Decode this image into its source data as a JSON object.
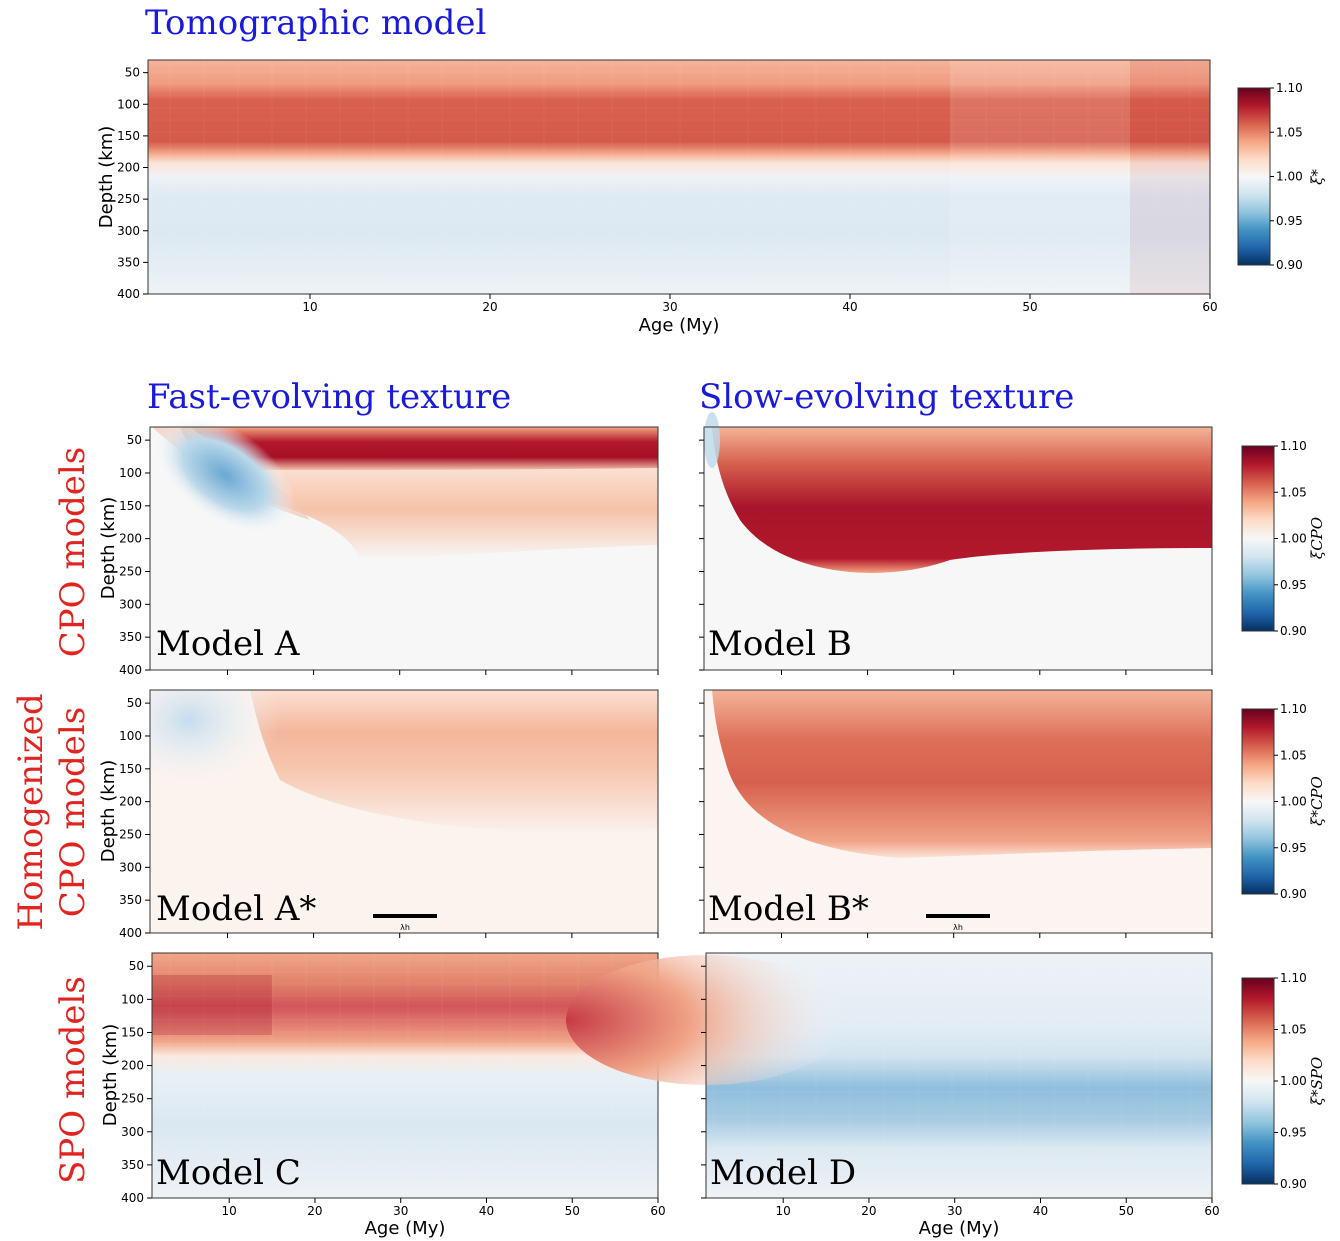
{
  "titles": {
    "top": "Tomographic model",
    "fast": "Fast-evolving texture",
    "slow": "Slow-evolving texture"
  },
  "row_labels": {
    "cpo": "CPO models",
    "homog_line1": "Homogenized",
    "homog_line2": "CPO models",
    "spo": "SPO models"
  },
  "colors": {
    "title_blue": "#1a1adc",
    "row_red": "#e0241f"
  },
  "axes": {
    "depth_label": "Depth (km)",
    "age_label": "Age (My)",
    "depth_ticks": [
      "50",
      "100",
      "150",
      "200",
      "250",
      "300",
      "350",
      "400"
    ],
    "age_ticks": [
      "10",
      "20",
      "30",
      "40",
      "50",
      "60"
    ],
    "wavelength_label": "λh"
  },
  "colorbar": {
    "ticks": [
      "1.10",
      "1.05",
      "1.00",
      "0.95",
      "0.90"
    ],
    "labels": [
      "ξ*",
      "ξCPO",
      "ξ*CPO",
      "ξ*SPO"
    ]
  },
  "chart_data": [
    {
      "name": "Tomographic model",
      "type": "heatmap",
      "x_range": [
        1,
        60
      ],
      "y_range": [
        30,
        400
      ],
      "y_inverted": true,
      "xlabel": "Age (My)",
      "ylabel": "Depth (km)",
      "colorbar": {
        "label": "ξ*",
        "range": [
          0.9,
          1.1
        ],
        "cmap": "RdBu_r"
      },
      "depth_profile_approx": [
        {
          "depth": 50,
          "value": 1.03
        },
        {
          "depth": 100,
          "value": 1.07
        },
        {
          "depth": 150,
          "value": 1.07
        },
        {
          "depth": 200,
          "value": 1.0
        },
        {
          "depth": 250,
          "value": 0.985
        },
        {
          "depth": 300,
          "value": 0.985
        },
        {
          "depth": 350,
          "value": 0.99
        },
        {
          "depth": 400,
          "value": 0.995
        }
      ]
    },
    {
      "name": "Model A",
      "type": "heatmap",
      "x_range": [
        1,
        60
      ],
      "y_range": [
        30,
        400
      ],
      "ylabel": "Depth (km)",
      "colorbar": {
        "label": "ξCPO",
        "range": [
          0.9,
          1.1
        ]
      },
      "notes": "strong positive band 60-90 km, negative wedge at young ages near 100-150 km"
    },
    {
      "name": "Model B",
      "type": "heatmap",
      "x_range": [
        1,
        60
      ],
      "y_range": [
        30,
        400
      ],
      "colorbar": {
        "label": "ξCPO",
        "range": [
          0.9,
          1.1
        ]
      },
      "notes": "strong positive region 80-220 km thickening with age"
    },
    {
      "name": "Model A*",
      "type": "heatmap",
      "x_range": [
        1,
        60
      ],
      "y_range": [
        30,
        400
      ],
      "ylabel": "Depth (km)",
      "colorbar": {
        "label": "ξ*CPO",
        "range": [
          0.9,
          1.1
        ]
      }
    },
    {
      "name": "Model B*",
      "type": "heatmap",
      "x_range": [
        1,
        60
      ],
      "y_range": [
        30,
        400
      ],
      "colorbar": {
        "label": "ξ*CPO",
        "range": [
          0.9,
          1.1
        ]
      }
    },
    {
      "name": "Model C",
      "type": "heatmap",
      "x_range": [
        1,
        60
      ],
      "y_range": [
        30,
        400
      ],
      "xlabel": "Age (My)",
      "ylabel": "Depth (km)",
      "colorbar": {
        "label": "ξ*SPO",
        "range": [
          0.9,
          1.1
        ]
      }
    },
    {
      "name": "Model D",
      "type": "heatmap",
      "x_range": [
        1,
        60
      ],
      "y_range": [
        30,
        400
      ],
      "xlabel": "Age (My)",
      "colorbar": {
        "label": "ξ*SPO",
        "range": [
          0.9,
          1.1
        ]
      }
    }
  ]
}
